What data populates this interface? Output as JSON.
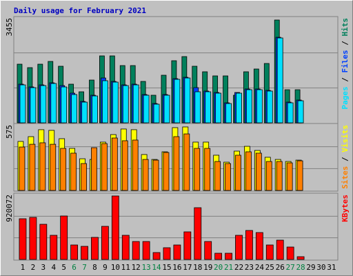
{
  "title": "Daily usage for February 2021",
  "legend_separator": " / ",
  "chart_data": [
    {
      "type": "bar",
      "ylim": [
        0,
        3455
      ],
      "yticks": [
        3455
      ],
      "series": [
        {
          "name": "Hits",
          "color": "#00805c",
          "values": [
            1932,
            1818,
            1932,
            2023,
            1864,
            1273,
            1023,
            1409,
            2205,
            2205,
            1886,
            1886,
            1364,
            909,
            1568,
            2046,
            2182,
            1864,
            1682,
            1546,
            1546,
            909,
            1682,
            1773,
            1955,
            3387,
            1091,
            1091,
            null,
            null,
            null
          ]
        },
        {
          "name": "Files",
          "color": "#0040ff",
          "values": [
            1273,
            1182,
            1250,
            1318,
            1227,
            977,
            705,
            909,
            1477,
            1364,
            1250,
            1273,
            932,
            636,
            932,
            1455,
            1500,
            1159,
            1046,
            1000,
            659,
            1000,
            1114,
            1114,
            1068,
            2818,
            682,
            750,
            null,
            null,
            null
          ]
        },
        {
          "name": "Pages",
          "color": "#00e0ff",
          "values": [
            1250,
            1159,
            1227,
            1296,
            1182,
            932,
            682,
            886,
            1387,
            1341,
            1227,
            1250,
            909,
            614,
            909,
            1432,
            1477,
            1023,
            1023,
            977,
            636,
            977,
            1091,
            1091,
            1046,
            2796,
            659,
            727,
            null,
            null,
            null
          ]
        }
      ]
    },
    {
      "type": "bar",
      "ylim": [
        0,
        575
      ],
      "yticks": [
        575
      ],
      "series": [
        {
          "name": "Visits",
          "color": "#ffff00",
          "values": [
            430,
            472,
            533,
            527,
            454,
            369,
            278,
            272,
            424,
            490,
            539,
            533,
            315,
            272,
            339,
            551,
            557,
            424,
            424,
            309,
            248,
            345,
            387,
            351,
            291,
            272,
            254,
            266,
            null,
            null,
            null
          ]
        },
        {
          "name": "Sites",
          "color": "#ff8000",
          "values": [
            381,
            405,
            418,
            405,
            369,
            327,
            236,
            375,
            411,
            460,
            436,
            442,
            272,
            266,
            333,
            472,
            496,
            369,
            369,
            254,
            236,
            309,
            339,
            327,
            254,
            254,
            242,
            260,
            null,
            null,
            null
          ]
        }
      ]
    },
    {
      "type": "bar",
      "ylim": [
        0,
        920072
      ],
      "yticks": [
        920072
      ],
      "categories": [
        "1",
        "2",
        "3",
        "4",
        "5",
        "6",
        "7",
        "8",
        "9",
        "10",
        "11",
        "12",
        "13",
        "14",
        "15",
        "16",
        "17",
        "18",
        "19",
        "20",
        "21",
        "22",
        "23",
        "24",
        "25",
        "26",
        "27",
        "28",
        "29",
        "30",
        "31"
      ],
      "category_colors": [
        "#000000",
        "#000000",
        "#000000",
        "#000000",
        "#000000",
        "#008040",
        "#008040",
        "#000000",
        "#000000",
        "#000000",
        "#000000",
        "#000000",
        "#008040",
        "#008040",
        "#000000",
        "#000000",
        "#000000",
        "#000000",
        "#000000",
        "#008040",
        "#008040",
        "#000000",
        "#000000",
        "#000000",
        "#000000",
        "#000000",
        "#008040",
        "#008040",
        "#000000",
        "#000000",
        "#000000"
      ],
      "series": [
        {
          "name": "KBytes",
          "color": "#ff0000",
          "values": [
            577500,
            597000,
            499000,
            342600,
            616600,
            205500,
            186000,
            313200,
            469800,
            900500,
            342600,
            254500,
            254500,
            97900,
            166400,
            205500,
            391500,
            734100,
            254500,
            88100,
            88100,
            342600,
            411100,
            381700,
            205500,
            274100,
            176200,
            39200,
            null,
            null,
            null
          ]
        }
      ]
    }
  ]
}
